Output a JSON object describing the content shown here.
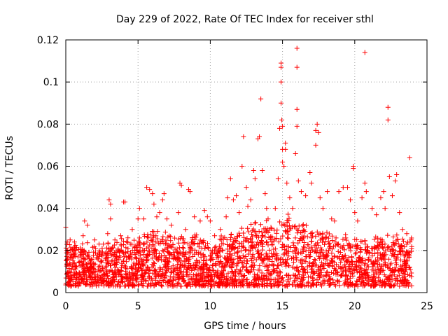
{
  "chart_data": {
    "type": "scatter",
    "title": "Day 229 of 2022, Rate Of TEC Index for receiver sthl",
    "xlabel": "GPS time / hours",
    "ylabel": "ROTI / TECUs",
    "xlim": [
      0,
      25
    ],
    "ylim": [
      0,
      0.12
    ],
    "xticks": [
      0,
      5,
      10,
      15,
      20,
      25
    ],
    "xtick_labels": [
      "0",
      "5",
      "10",
      "15",
      "20",
      "25"
    ],
    "yticks": [
      0,
      0.02,
      0.04,
      0.06,
      0.08,
      0.1,
      0.12
    ],
    "ytick_labels": [
      "0",
      "0.02",
      "0.04",
      "0.06",
      "0.08",
      "0.1",
      "0.12"
    ],
    "grid": true,
    "marker": "+",
    "color": "#ff0000",
    "series": [
      {
        "name": "ROTI",
        "points": [
          [
            0.0,
            0.031
          ],
          [
            0.1,
            0.024
          ],
          [
            0.3,
            0.025
          ],
          [
            0.6,
            0.024
          ],
          [
            1.2,
            0.027
          ],
          [
            1.3,
            0.034
          ],
          [
            1.5,
            0.032
          ],
          [
            2.0,
            0.025
          ],
          [
            2.3,
            0.023
          ],
          [
            2.6,
            0.023
          ],
          [
            2.9,
            0.028
          ],
          [
            3.0,
            0.044
          ],
          [
            3.1,
            0.042
          ],
          [
            3.1,
            0.035
          ],
          [
            3.4,
            0.025
          ],
          [
            3.8,
            0.027
          ],
          [
            4.0,
            0.043
          ],
          [
            4.1,
            0.043
          ],
          [
            4.3,
            0.026
          ],
          [
            4.6,
            0.03
          ],
          [
            5.0,
            0.035
          ],
          [
            5.1,
            0.04
          ],
          [
            5.4,
            0.035
          ],
          [
            5.6,
            0.05
          ],
          [
            5.8,
            0.049
          ],
          [
            6.0,
            0.047
          ],
          [
            6.1,
            0.042
          ],
          [
            6.3,
            0.036
          ],
          [
            6.5,
            0.038
          ],
          [
            6.7,
            0.044
          ],
          [
            6.8,
            0.047
          ],
          [
            7.0,
            0.035
          ],
          [
            7.3,
            0.032
          ],
          [
            7.8,
            0.038
          ],
          [
            7.9,
            0.052
          ],
          [
            8.0,
            0.051
          ],
          [
            8.3,
            0.03
          ],
          [
            8.5,
            0.049
          ],
          [
            8.6,
            0.048
          ],
          [
            8.9,
            0.036
          ],
          [
            9.3,
            0.034
          ],
          [
            9.6,
            0.039
          ],
          [
            9.8,
            0.036
          ],
          [
            10.0,
            0.034
          ],
          [
            10.3,
            0.027
          ],
          [
            10.7,
            0.03
          ],
          [
            11.1,
            0.036
          ],
          [
            11.2,
            0.045
          ],
          [
            11.4,
            0.054
          ],
          [
            11.6,
            0.044
          ],
          [
            11.8,
            0.046
          ],
          [
            12.0,
            0.038
          ],
          [
            12.2,
            0.06
          ],
          [
            12.3,
            0.074
          ],
          [
            12.5,
            0.05
          ],
          [
            12.6,
            0.041
          ],
          [
            12.8,
            0.044
          ],
          [
            13.0,
            0.058
          ],
          [
            13.1,
            0.054
          ],
          [
            13.3,
            0.073
          ],
          [
            13.4,
            0.074
          ],
          [
            13.5,
            0.092
          ],
          [
            13.6,
            0.058
          ],
          [
            13.8,
            0.047
          ],
          [
            13.9,
            0.04
          ],
          [
            14.0,
            0.035
          ],
          [
            14.2,
            0.031
          ],
          [
            14.5,
            0.04
          ],
          [
            14.7,
            0.054
          ],
          [
            14.8,
            0.078
          ],
          [
            14.9,
            0.09
          ],
          [
            14.9,
            0.1
          ],
          [
            14.9,
            0.107
          ],
          [
            14.9,
            0.109
          ],
          [
            14.95,
            0.082
          ],
          [
            15.0,
            0.079
          ],
          [
            15.0,
            0.068
          ],
          [
            15.0,
            0.062
          ],
          [
            15.1,
            0.06
          ],
          [
            15.2,
            0.071
          ],
          [
            15.2,
            0.068
          ],
          [
            15.3,
            0.052
          ],
          [
            15.5,
            0.045
          ],
          [
            15.7,
            0.04
          ],
          [
            15.9,
            0.066
          ],
          [
            16.0,
            0.116
          ],
          [
            16.0,
            0.107
          ],
          [
            16.0,
            0.087
          ],
          [
            16.0,
            0.079
          ],
          [
            16.1,
            0.053
          ],
          [
            16.3,
            0.048
          ],
          [
            16.6,
            0.046
          ],
          [
            16.9,
            0.057
          ],
          [
            17.0,
            0.052
          ],
          [
            17.3,
            0.077
          ],
          [
            17.3,
            0.07
          ],
          [
            17.4,
            0.08
          ],
          [
            17.5,
            0.076
          ],
          [
            17.6,
            0.045
          ],
          [
            17.8,
            0.04
          ],
          [
            18.1,
            0.048
          ],
          [
            18.4,
            0.035
          ],
          [
            18.6,
            0.034
          ],
          [
            18.9,
            0.048
          ],
          [
            19.2,
            0.05
          ],
          [
            19.5,
            0.05
          ],
          [
            19.7,
            0.044
          ],
          [
            19.9,
            0.06
          ],
          [
            19.9,
            0.059
          ],
          [
            20.0,
            0.038
          ],
          [
            20.2,
            0.034
          ],
          [
            20.5,
            0.045
          ],
          [
            20.7,
            0.114
          ],
          [
            20.7,
            0.052
          ],
          [
            20.8,
            0.048
          ],
          [
            21.2,
            0.04
          ],
          [
            21.5,
            0.037
          ],
          [
            21.8,
            0.045
          ],
          [
            22.0,
            0.048
          ],
          [
            22.1,
            0.04
          ],
          [
            22.3,
            0.088
          ],
          [
            22.3,
            0.082
          ],
          [
            22.4,
            0.055
          ],
          [
            22.6,
            0.046
          ],
          [
            22.8,
            0.053
          ],
          [
            22.9,
            0.056
          ],
          [
            23.1,
            0.038
          ],
          [
            23.3,
            0.03
          ],
          [
            23.6,
            0.028
          ],
          [
            23.8,
            0.064
          ],
          [
            23.9,
            0.025
          ]
        ],
        "dense_band": {
          "description": "thousands of points between baseline and upper envelope",
          "baseline": 0.003,
          "x": [
            0,
            1,
            2,
            3,
            4,
            5,
            6,
            7,
            8,
            9,
            10,
            11,
            12,
            13,
            14,
            15,
            16,
            17,
            18,
            19,
            20,
            21,
            22,
            23,
            24
          ],
          "upper": [
            0.022,
            0.023,
            0.02,
            0.022,
            0.024,
            0.026,
            0.028,
            0.026,
            0.025,
            0.026,
            0.022,
            0.026,
            0.03,
            0.032,
            0.032,
            0.034,
            0.032,
            0.03,
            0.03,
            0.026,
            0.024,
            0.024,
            0.026,
            0.026,
            0.024
          ]
        }
      }
    ]
  }
}
